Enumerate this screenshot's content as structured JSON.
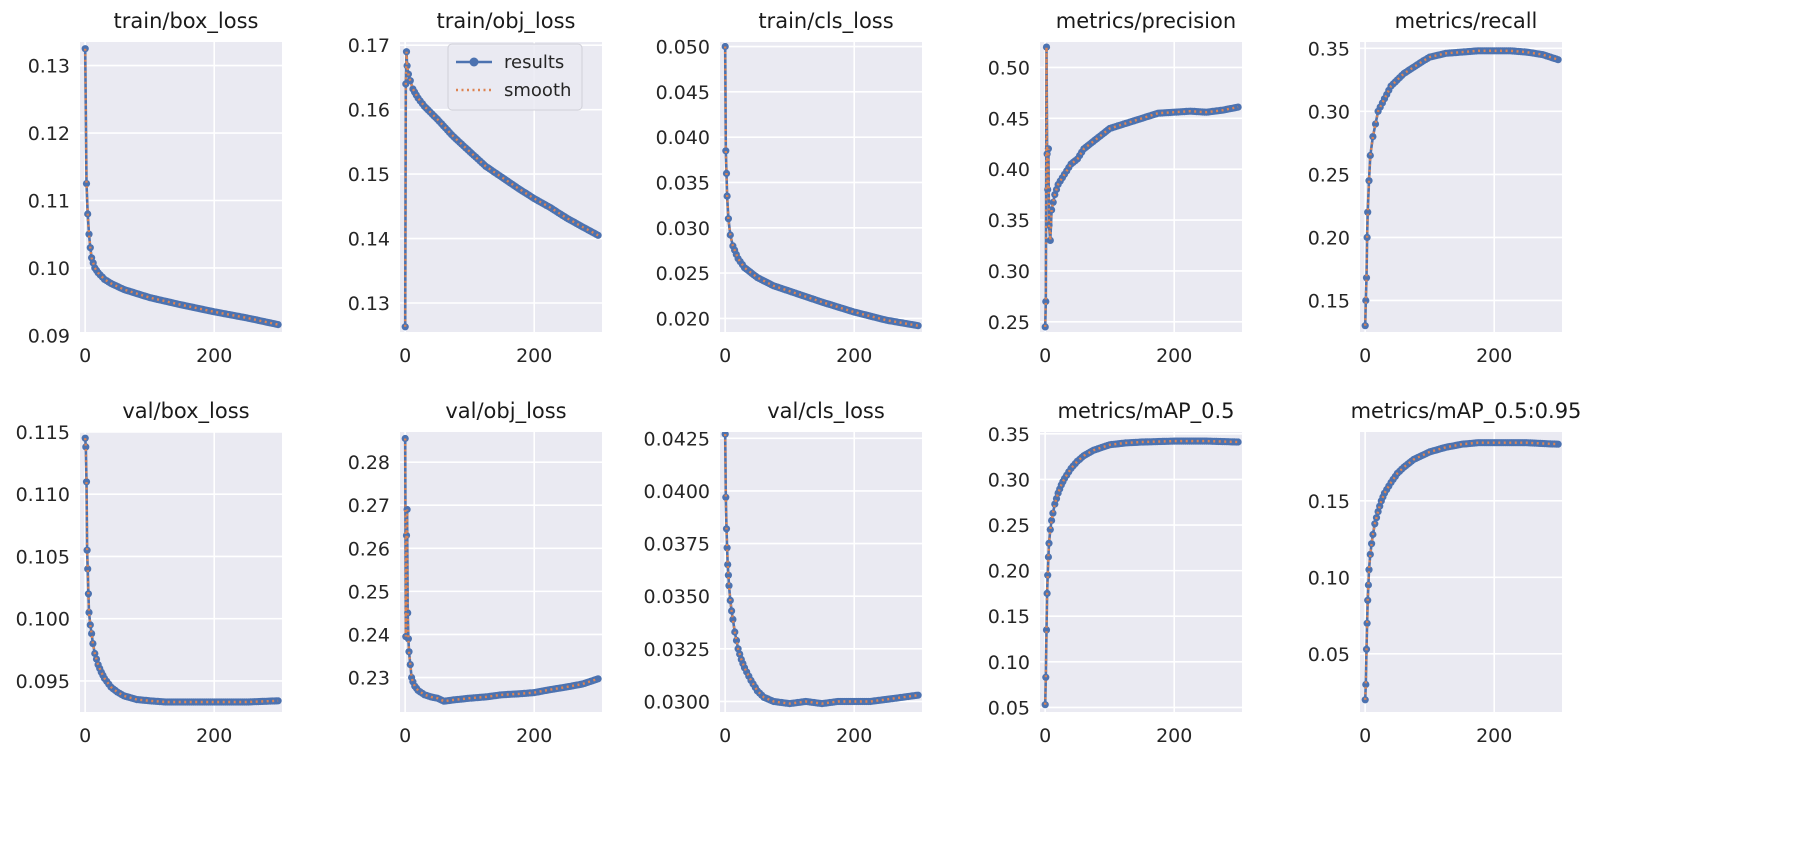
{
  "figure": {
    "legend": {
      "results": "results",
      "smooth": "smooth"
    },
    "colors": {
      "plot_bg": "#eaeaf2",
      "grid": "#ffffff",
      "results": "#4c72b0",
      "smooth": "#dd8452"
    }
  },
  "chart_data": [
    {
      "type": "line",
      "title": "train/box_loss",
      "xlim": [
        -8,
        305
      ],
      "ylim": [
        0.0905,
        0.1335
      ],
      "xticks": [
        0,
        200
      ],
      "yticks": [
        0.09,
        0.1,
        0.11,
        0.12,
        0.13
      ],
      "ytick_labels": [
        "0.09",
        "0.10",
        "0.11",
        "0.12",
        "0.13"
      ],
      "series": [
        {
          "name": "results",
          "x": [
            0,
            2,
            4,
            6,
            8,
            10,
            15,
            20,
            30,
            40,
            60,
            80,
            100,
            150,
            200,
            250,
            299
          ],
          "y": [
            0.1325,
            0.1125,
            0.108,
            0.105,
            0.103,
            0.1015,
            0.1,
            0.0993,
            0.0983,
            0.0977,
            0.0968,
            0.0962,
            0.0956,
            0.0945,
            0.0935,
            0.0926,
            0.0916
          ]
        }
      ]
    },
    {
      "type": "line",
      "title": "train/obj_loss",
      "xlim": [
        -8,
        305
      ],
      "ylim": [
        0.1255,
        0.1705
      ],
      "xticks": [
        0,
        200
      ],
      "yticks": [
        0.13,
        0.14,
        0.15,
        0.16,
        0.17
      ],
      "ytick_labels": [
        "0.13",
        "0.14",
        "0.15",
        "0.16",
        "0.17"
      ],
      "legend": "top-right",
      "series": [
        {
          "name": "results",
          "x": [
            0,
            1,
            2,
            3,
            5,
            8,
            12,
            20,
            30,
            50,
            75,
            100,
            125,
            150,
            175,
            200,
            225,
            250,
            275,
            299
          ],
          "y": [
            0.1263,
            0.164,
            0.169,
            0.1668,
            0.1655,
            0.1645,
            0.1632,
            0.1618,
            0.1605,
            0.1585,
            0.1558,
            0.1535,
            0.1512,
            0.1495,
            0.1478,
            0.1462,
            0.1448,
            0.1432,
            0.1418,
            0.1405
          ]
        }
      ]
    },
    {
      "type": "line",
      "title": "train/cls_loss",
      "xlim": [
        -8,
        305
      ],
      "ylim": [
        0.0185,
        0.0505
      ],
      "xticks": [
        0,
        200
      ],
      "yticks": [
        0.02,
        0.025,
        0.03,
        0.035,
        0.04,
        0.045,
        0.05
      ],
      "ytick_labels": [
        "0.020",
        "0.025",
        "0.030",
        "0.035",
        "0.040",
        "0.045",
        "0.050"
      ],
      "series": [
        {
          "name": "results",
          "x": [
            0,
            1,
            2,
            3,
            5,
            8,
            12,
            20,
            30,
            50,
            75,
            100,
            150,
            200,
            250,
            299
          ],
          "y": [
            0.05,
            0.0385,
            0.036,
            0.0335,
            0.031,
            0.0292,
            0.028,
            0.0266,
            0.0256,
            0.0245,
            0.0236,
            0.023,
            0.0218,
            0.0207,
            0.0198,
            0.0192
          ]
        }
      ]
    },
    {
      "type": "line",
      "title": "metrics/precision",
      "xlim": [
        -8,
        305
      ],
      "ylim": [
        0.24,
        0.525
      ],
      "xticks": [
        0,
        200
      ],
      "yticks": [
        0.25,
        0.3,
        0.35,
        0.4,
        0.45,
        0.5
      ],
      "ytick_labels": [
        "0.25",
        "0.30",
        "0.35",
        "0.40",
        "0.45",
        "0.50"
      ],
      "series": [
        {
          "name": "results",
          "x": [
            0,
            1,
            2,
            3,
            4,
            5,
            6,
            8,
            10,
            15,
            20,
            30,
            40,
            50,
            60,
            80,
            100,
            125,
            150,
            175,
            200,
            225,
            250,
            275,
            299
          ],
          "y": [
            0.245,
            0.27,
            0.52,
            0.415,
            0.38,
            0.42,
            0.345,
            0.33,
            0.36,
            0.375,
            0.385,
            0.395,
            0.405,
            0.41,
            0.42,
            0.43,
            0.44,
            0.445,
            0.45,
            0.455,
            0.456,
            0.457,
            0.456,
            0.458,
            0.461
          ]
        }
      ]
    },
    {
      "type": "line",
      "title": "metrics/recall",
      "xlim": [
        -8,
        305
      ],
      "ylim": [
        0.125,
        0.355
      ],
      "xticks": [
        0,
        200
      ],
      "yticks": [
        0.15,
        0.2,
        0.25,
        0.3,
        0.35
      ],
      "ytick_labels": [
        "0.15",
        "0.20",
        "0.25",
        "0.30",
        "0.35"
      ],
      "series": [
        {
          "name": "results",
          "x": [
            0,
            1,
            2,
            3,
            4,
            6,
            8,
            12,
            16,
            20,
            30,
            40,
            50,
            60,
            75,
            90,
            100,
            125,
            150,
            175,
            200,
            225,
            250,
            275,
            299
          ],
          "y": [
            0.13,
            0.15,
            0.168,
            0.2,
            0.22,
            0.245,
            0.265,
            0.28,
            0.29,
            0.3,
            0.31,
            0.32,
            0.325,
            0.33,
            0.335,
            0.34,
            0.343,
            0.346,
            0.347,
            0.348,
            0.348,
            0.348,
            0.347,
            0.345,
            0.341
          ]
        }
      ]
    },
    {
      "type": "line",
      "title": "val/box_loss",
      "xlim": [
        -8,
        305
      ],
      "ylim": [
        0.0925,
        0.115
      ],
      "xticks": [
        0,
        200
      ],
      "yticks": [
        0.095,
        0.1,
        0.105,
        0.11,
        0.115
      ],
      "ytick_labels": [
        "0.095",
        "0.100",
        "0.105",
        "0.110",
        "0.115"
      ],
      "series": [
        {
          "name": "results",
          "x": [
            0,
            1,
            2,
            3,
            4,
            5,
            6,
            8,
            10,
            12,
            15,
            20,
            25,
            30,
            40,
            50,
            60,
            80,
            100,
            125,
            150,
            200,
            250,
            299
          ],
          "y": [
            0.1145,
            0.1138,
            0.111,
            0.1055,
            0.104,
            0.102,
            0.1005,
            0.0995,
            0.0988,
            0.098,
            0.0972,
            0.0963,
            0.0957,
            0.0952,
            0.0945,
            0.0941,
            0.0938,
            0.0935,
            0.0934,
            0.0933,
            0.0933,
            0.0933,
            0.0933,
            0.0934
          ]
        }
      ]
    },
    {
      "type": "line",
      "title": "val/obj_loss",
      "xlim": [
        -8,
        305
      ],
      "ylim": [
        0.222,
        0.287
      ],
      "xticks": [
        0,
        200
      ],
      "yticks": [
        0.23,
        0.24,
        0.25,
        0.26,
        0.27,
        0.28
      ],
      "ytick_labels": [
        "0.23",
        "0.24",
        "0.25",
        "0.26",
        "0.27",
        "0.28"
      ],
      "series": [
        {
          "name": "results",
          "x": [
            0,
            1,
            2,
            3,
            4,
            5,
            6,
            8,
            10,
            12,
            15,
            20,
            30,
            40,
            50,
            60,
            75,
            100,
            125,
            150,
            175,
            200,
            225,
            250,
            275,
            299
          ],
          "y": [
            0.2855,
            0.2395,
            0.263,
            0.269,
            0.245,
            0.239,
            0.236,
            0.233,
            0.23,
            0.229,
            0.228,
            0.227,
            0.226,
            0.2255,
            0.2252,
            0.2245,
            0.2248,
            0.2252,
            0.2255,
            0.226,
            0.2262,
            0.2265,
            0.2272,
            0.2278,
            0.2285,
            0.2297
          ]
        }
      ]
    },
    {
      "type": "line",
      "title": "val/cls_loss",
      "xlim": [
        -8,
        305
      ],
      "ylim": [
        0.0295,
        0.0428
      ],
      "xticks": [
        0,
        200
      ],
      "yticks": [
        0.03,
        0.0325,
        0.035,
        0.0375,
        0.04,
        0.0425
      ],
      "ytick_labels": [
        "0.0300",
        "0.0325",
        "0.0350",
        "0.0375",
        "0.0400",
        "0.0425"
      ],
      "series": [
        {
          "name": "results",
          "x": [
            0,
            1,
            2,
            3,
            4,
            5,
            6,
            8,
            10,
            12,
            15,
            20,
            25,
            30,
            40,
            50,
            60,
            75,
            100,
            125,
            150,
            175,
            200,
            225,
            250,
            275,
            299
          ],
          "y": [
            0.0427,
            0.0397,
            0.0382,
            0.0373,
            0.0365,
            0.036,
            0.0355,
            0.0348,
            0.0343,
            0.0339,
            0.0333,
            0.0325,
            0.032,
            0.0316,
            0.031,
            0.0305,
            0.0302,
            0.03,
            0.0299,
            0.03,
            0.0299,
            0.03,
            0.03,
            0.03,
            0.0301,
            0.0302,
            0.0303
          ]
        }
      ]
    },
    {
      "type": "line",
      "title": "metrics/mAP_0.5",
      "xlim": [
        -8,
        305
      ],
      "ylim": [
        0.045,
        0.352
      ],
      "xticks": [
        0,
        200
      ],
      "yticks": [
        0.05,
        0.1,
        0.15,
        0.2,
        0.25,
        0.3,
        0.35
      ],
      "ytick_labels": [
        "0.05",
        "0.10",
        "0.15",
        "0.20",
        "0.25",
        "0.30",
        "0.35"
      ],
      "series": [
        {
          "name": "results",
          "x": [
            0,
            1,
            2,
            3,
            4,
            5,
            6,
            8,
            10,
            12,
            15,
            20,
            25,
            30,
            40,
            50,
            60,
            75,
            100,
            125,
            150,
            200,
            250,
            299
          ],
          "y": [
            0.053,
            0.083,
            0.135,
            0.175,
            0.195,
            0.215,
            0.23,
            0.245,
            0.255,
            0.263,
            0.273,
            0.285,
            0.294,
            0.301,
            0.312,
            0.32,
            0.326,
            0.332,
            0.338,
            0.34,
            0.341,
            0.342,
            0.342,
            0.341
          ]
        }
      ]
    },
    {
      "type": "line",
      "title": "metrics/mAP_0.5:0.95",
      "xlim": [
        -8,
        305
      ],
      "ylim": [
        0.012,
        0.195
      ],
      "xticks": [
        0,
        200
      ],
      "yticks": [
        0.05,
        0.1,
        0.15
      ],
      "ytick_labels": [
        "0.05",
        "0.10",
        "0.15"
      ],
      "series": [
        {
          "name": "results",
          "x": [
            0,
            1,
            2,
            3,
            4,
            5,
            6,
            8,
            10,
            12,
            15,
            20,
            25,
            30,
            40,
            50,
            60,
            75,
            100,
            125,
            150,
            175,
            200,
            250,
            299
          ],
          "y": [
            0.02,
            0.03,
            0.053,
            0.07,
            0.085,
            0.095,
            0.105,
            0.115,
            0.122,
            0.128,
            0.135,
            0.143,
            0.15,
            0.155,
            0.162,
            0.168,
            0.172,
            0.177,
            0.182,
            0.185,
            0.187,
            0.188,
            0.188,
            0.188,
            0.187
          ]
        }
      ]
    }
  ]
}
